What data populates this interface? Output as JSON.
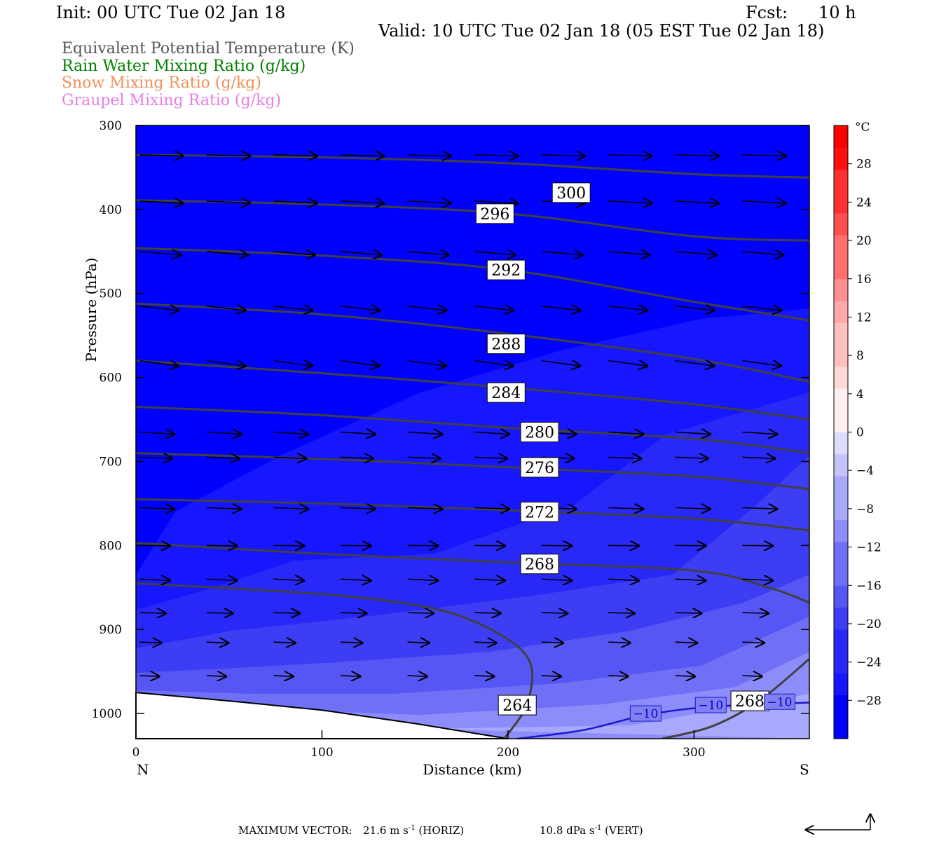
{
  "header": {
    "init": "Init: 00 UTC Tue 02 Jan 18",
    "fcst_label": "Fcst:",
    "fcst_value": "10 h",
    "valid": "Valid: 10 UTC Tue 02 Jan 18 (05 EST Tue 02 Jan 18)"
  },
  "fields": [
    {
      "label": "Equivalent Potential Temperature (K)",
      "color": "#555555"
    },
    {
      "label": "Rain Water Mixing Ratio (g/kg)",
      "color": "#008000"
    },
    {
      "label": "Snow Mixing Ratio (g/kg)",
      "color": "#f0905a"
    },
    {
      "label": "Graupel Mixing Ratio (g/kg)",
      "color": "#e87ee8"
    }
  ],
  "footer": {
    "max_vector_label": "MAXIMUM VECTOR:",
    "horiz_value": "21.6 m s",
    "horiz_unit": "(HORIZ)",
    "vert_value": "10.8 dPa s",
    "vert_unit": "(VERT)",
    "exponent": "-1"
  },
  "chart_data": {
    "type": "contour",
    "xlabel": "Distance (km)",
    "ylabel": "Pressure (hPa)",
    "xlim": [
      0,
      362
    ],
    "ylim": [
      1030,
      300
    ],
    "x_ticks": [
      0,
      100,
      200,
      300
    ],
    "y_ticks": [
      300,
      400,
      500,
      600,
      700,
      800,
      900,
      1000
    ],
    "x_end_labels": {
      "left": "N",
      "right": "S"
    },
    "colorbar": {
      "unit": "°C",
      "range": [
        -32,
        32
      ],
      "labels": [
        "28",
        "24",
        "20",
        "16",
        "12",
        "8",
        "4",
        "0",
        "−4",
        "−8",
        "−12",
        "−16",
        "−20",
        "−24",
        "−28"
      ],
      "label_values": [
        28,
        24,
        20,
        16,
        12,
        8,
        4,
        0,
        -4,
        -8,
        -12,
        -16,
        -20,
        -24,
        -28
      ]
    },
    "theta_e_contours": [
      {
        "label": "300",
        "label_at": [
          234,
          380
        ],
        "points": [
          [
            0,
            335
          ],
          [
            100,
            338
          ],
          [
            200,
            345
          ],
          [
            300,
            358
          ],
          [
            362,
            362
          ]
        ]
      },
      {
        "label": "296",
        "label_at": [
          193,
          405
        ],
        "points": [
          [
            0,
            389
          ],
          [
            100,
            394
          ],
          [
            200,
            405
          ],
          [
            300,
            432
          ],
          [
            362,
            437
          ]
        ]
      },
      {
        "label": "292",
        "label_at": [
          199,
          472
        ],
        "points": [
          [
            0,
            446
          ],
          [
            100,
            455
          ],
          [
            200,
            472
          ],
          [
            300,
            510
          ],
          [
            362,
            532
          ]
        ]
      },
      {
        "label": "288",
        "label_at": [
          199,
          560
        ],
        "points": [
          [
            0,
            512
          ],
          [
            100,
            525
          ],
          [
            200,
            548
          ],
          [
            300,
            578
          ],
          [
            362,
            605
          ]
        ]
      },
      {
        "label": "284",
        "label_at": [
          199,
          618
        ],
        "points": [
          [
            0,
            580
          ],
          [
            100,
            595
          ],
          [
            200,
            612
          ],
          [
            300,
            632
          ],
          [
            362,
            650
          ]
        ]
      },
      {
        "label": "280",
        "label_at": [
          217,
          665
        ],
        "points": [
          [
            0,
            635
          ],
          [
            100,
            645
          ],
          [
            200,
            660
          ],
          [
            300,
            673
          ],
          [
            362,
            690
          ]
        ]
      },
      {
        "label": "276",
        "label_at": [
          217,
          707
        ],
        "points": [
          [
            0,
            690
          ],
          [
            100,
            697
          ],
          [
            200,
            707
          ],
          [
            300,
            718
          ],
          [
            362,
            733
          ]
        ]
      },
      {
        "label": "272",
        "label_at": [
          217,
          760
        ],
        "points": [
          [
            0,
            745
          ],
          [
            100,
            750
          ],
          [
            200,
            758
          ],
          [
            300,
            768
          ],
          [
            362,
            782
          ]
        ]
      },
      {
        "label": "268",
        "label_at": [
          217,
          822
        ],
        "points": [
          [
            0,
            797
          ],
          [
            100,
            810
          ],
          [
            200,
            820
          ],
          [
            300,
            830
          ],
          [
            340,
            850
          ],
          [
            362,
            868
          ]
        ]
      },
      {
        "label": "264",
        "label_at": [
          205,
          990
        ],
        "points": [
          [
            0,
            845
          ],
          [
            100,
            858
          ],
          [
            160,
            875
          ],
          [
            195,
            905
          ],
          [
            212,
            940
          ],
          [
            210,
            990
          ],
          [
            198,
            1030
          ]
        ]
      },
      {
        "label": "268",
        "label_at": [
          330,
          985
        ],
        "points": [
          [
            283,
            1030
          ],
          [
            310,
            1015
          ],
          [
            335,
            985
          ],
          [
            362,
            935
          ]
        ]
      }
    ],
    "temperature_line": {
      "label": "−10",
      "label_positions": [
        [
          274,
          1000
        ],
        [
          309,
          990
        ],
        [
          346,
          986
        ]
      ],
      "points": [
        [
          205,
          1030
        ],
        [
          240,
          1020
        ],
        [
          274,
          1002
        ],
        [
          309,
          992
        ],
        [
          362,
          987
        ]
      ]
    },
    "terrain": [
      [
        0,
        975
      ],
      [
        50,
        985
      ],
      [
        100,
        996
      ],
      [
        150,
        1012
      ],
      [
        200,
        1030
      ]
    ],
    "wind_vectors": [
      {
        "p": 335,
        "dir": 0.1,
        "len": 1.0
      },
      {
        "p": 390,
        "dir": 0.2,
        "len": 1.0
      },
      {
        "p": 450,
        "dir": 0.35,
        "len": 0.95
      },
      {
        "p": 515,
        "dir": 0.45,
        "len": 0.9
      },
      {
        "p": 580,
        "dir": 0.55,
        "len": 0.9
      },
      {
        "p": 665,
        "dir": 0.25,
        "len": 0.8
      },
      {
        "p": 695,
        "dir": 0.15,
        "len": 0.75
      },
      {
        "p": 755,
        "dir": 0.15,
        "len": 0.8
      },
      {
        "p": 800,
        "dir": 0.05,
        "len": 0.7
      },
      {
        "p": 840,
        "dir": 0.2,
        "len": 0.7
      },
      {
        "p": 880,
        "dir": 0.1,
        "len": 0.6
      },
      {
        "p": 915,
        "dir": 0.15,
        "len": 0.5
      },
      {
        "p": 955,
        "dir": 0.15,
        "len": 0.45
      }
    ]
  }
}
